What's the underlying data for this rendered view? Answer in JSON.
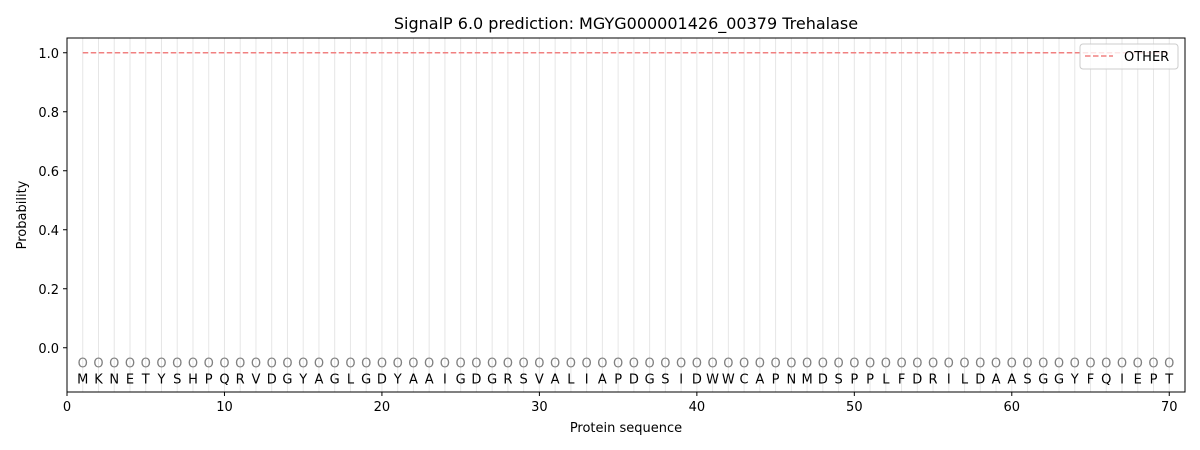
{
  "chart_data": {
    "type": "line",
    "title": "SignalP 6.0 prediction: MGYG000001426_00379 Trehalase",
    "xlabel": "Protein sequence",
    "ylabel": "Probability",
    "xlim": [
      0,
      71
    ],
    "ylim": [
      -0.15,
      1.05
    ],
    "xticks": [
      0,
      10,
      20,
      30,
      40,
      50,
      60,
      70
    ],
    "yticks": [
      0.0,
      0.2,
      0.4,
      0.6,
      0.8,
      1.0
    ],
    "ytick_labels": [
      "0.0",
      "0.2",
      "0.4",
      "0.6",
      "0.8",
      "1.0"
    ],
    "grid": "vertical lines at each residue",
    "legend_position": "top-right",
    "sequence": "MKNETYSHPQRVDGYAGLGDYAAIGDGRSVALIAPDGSIDWWCAPNMDSPPLFDRILDAASGGYFQIEPT",
    "region_labels": "OOOOOOOOOOOOOOOOOOOOOOOOOOOOOOOOOOOOOOOOOOOOOOOOOOOOOOOOOOOOOOOOOOOOOO",
    "series": [
      {
        "name": "OTHER",
        "color": "#f08080",
        "style": "dashed",
        "x_start": 1,
        "x_end": 70,
        "value": 1.0
      }
    ]
  }
}
